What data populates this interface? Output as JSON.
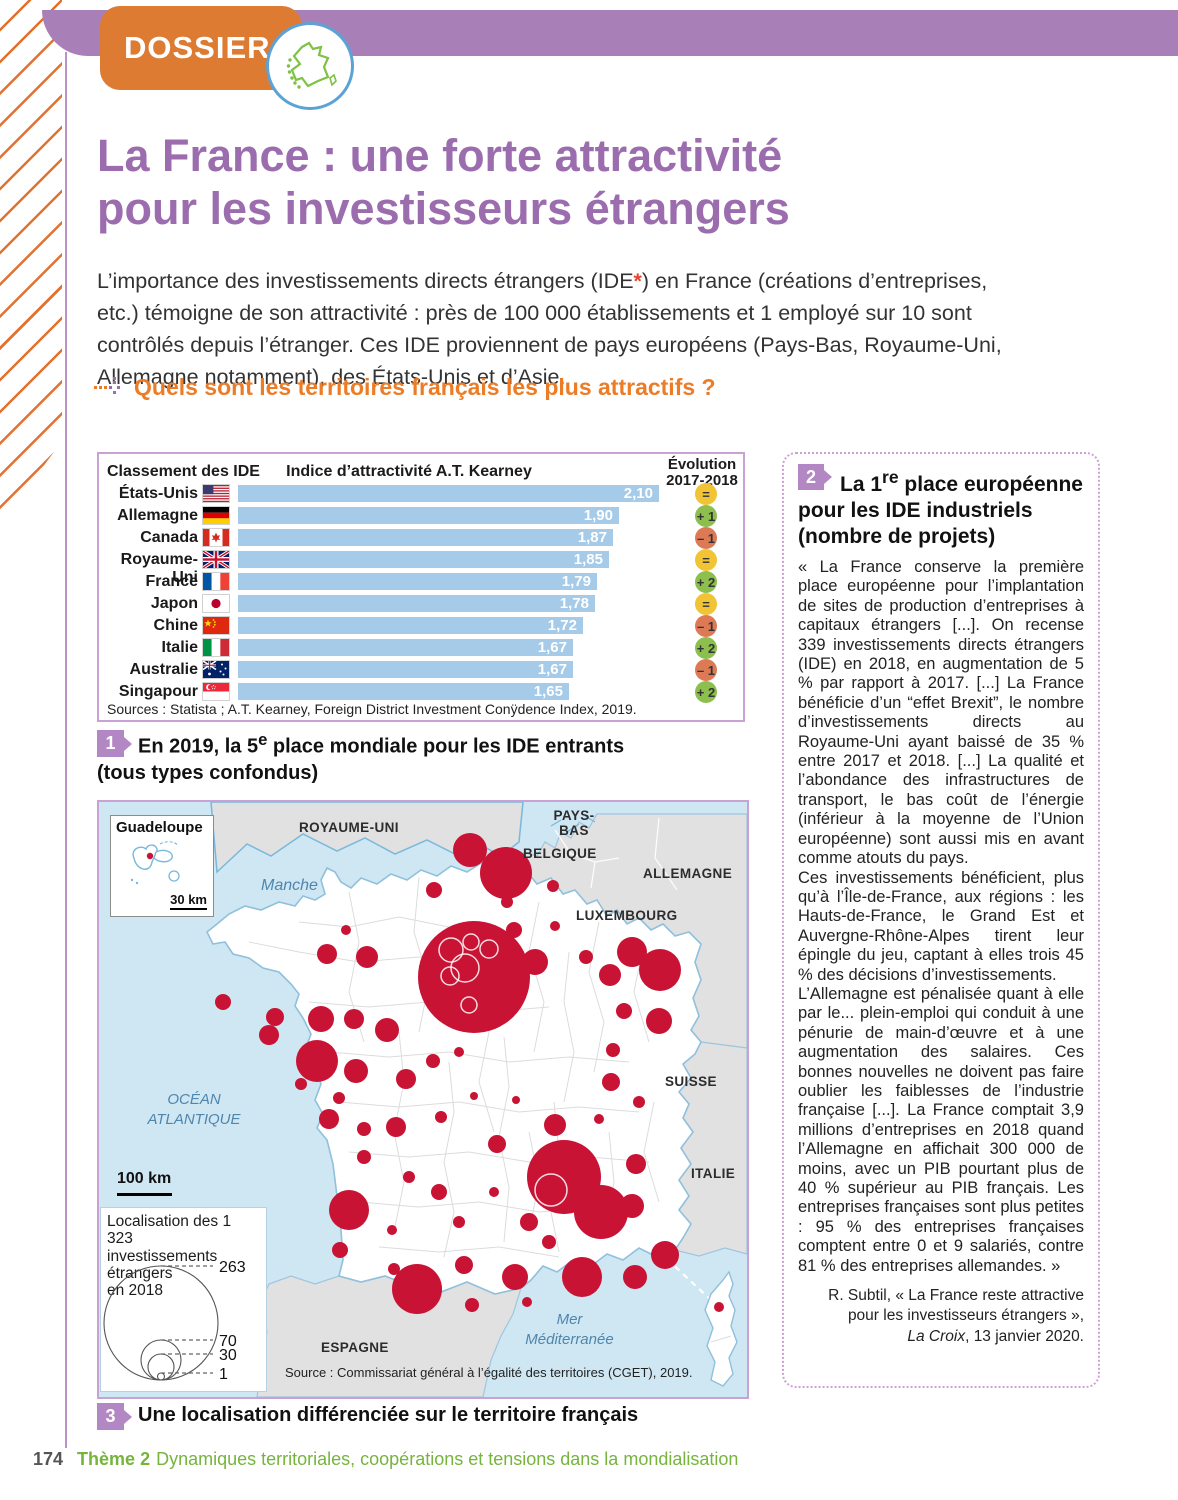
{
  "header": {
    "dossier": "DOSSIER",
    "title_line1": "La France : une forte attractivité",
    "title_line2": "pour les investisseurs étrangers"
  },
  "intro": {
    "pre": "L’importance des investissements directs étrangers (IDE",
    "star": "*",
    "post": ") en France (créations d’entreprises, etc.) témoigne de son attractivité : près de 100 000 établissements et 1 employé sur 10 sont contrôlés depuis l’étranger. Ces IDE proviennent de pays européens (Pays-Bas, Royaume-Uni, Allemagne notamment), des États-Unis et d’Asie."
  },
  "question": {
    "text": "Quels sont les territoires français les plus attractifs ?"
  },
  "chart_data": {
    "type": "bar",
    "col1_header": "Classement des IDE",
    "col2_header": "Indice d’attractivité A.T. Kearney",
    "col3_header_l1": "Évolution",
    "col3_header_l2": "2017-2018",
    "categories": [
      "États-Unis",
      "Allemagne",
      "Canada",
      "Royaume-Uni",
      "France",
      "Japon",
      "Chine",
      "Italie",
      "Australie",
      "Singapour"
    ],
    "values": [
      2.1,
      1.9,
      1.87,
      1.85,
      1.79,
      1.78,
      1.72,
      1.67,
      1.67,
      1.65
    ],
    "value_labels": [
      "2,10",
      "1,90",
      "1,87",
      "1,85",
      "1,79",
      "1,78",
      "1,72",
      "1,67",
      "1,67",
      "1,65"
    ],
    "flags": [
      "us",
      "de",
      "ca",
      "gb",
      "fr",
      "jp",
      "cn",
      "it",
      "au",
      "sg"
    ],
    "evolution": [
      {
        "label": "=",
        "dir": "eq"
      },
      {
        "label": "+ 1",
        "dir": "up"
      },
      {
        "label": "– 1",
        "dir": "down"
      },
      {
        "label": "=",
        "dir": "eq"
      },
      {
        "label": "+ 2",
        "dir": "up"
      },
      {
        "label": "=",
        "dir": "eq"
      },
      {
        "label": "– 1",
        "dir": "down"
      },
      {
        "label": "+ 2",
        "dir": "up"
      },
      {
        "label": "– 1",
        "dir": "down"
      },
      {
        "label": "+ 2",
        "dir": "up"
      }
    ],
    "xlim": [
      0,
      2.1
    ],
    "source": "Sources : Statista ; A.T. Kearney, Foreign District Investment Conÿdence Index, 2019."
  },
  "caption1": {
    "number": "1",
    "pre": "En 2019, la 5",
    "sup": "e",
    "post": " place mondiale pour les IDE entrants",
    "line2": "(tous types confondus)"
  },
  "doc2": {
    "number": "2",
    "title_pre": "La 1",
    "title_sup": "re",
    "title_post": " place européenne",
    "title_l2": "pour les IDE industriels",
    "title_l3": "(nombre de projets)",
    "paragraphs": [
      "« La France conserve la première place européenne pour l’implantation de sites de production d’entreprises à capitaux étrangers [...]. On recense 339 investissements directs étrangers (IDE) en 2018, en augmentation de 5 % par rapport à 2017. [...] La France bénéficie d’un “effet Brexit”, le nombre d’investissements directs au Royaume-Uni ayant baissé de 35 % entre 2017 et 2018. [...] La qualité et l’abondance des infrastructures de transport, le bas coût de l’énergie (inférieur à la moyenne de l’Union européenne) sont aussi mis en avant comme atouts du pays.",
      "Ces investissements bénéficient, plus qu’à l’Île-de-France, aux régions : les Hauts-de-France, le Grand Est et Auvergne-Rhône-Alpes tirent leur épingle du jeu, captant à elles trois 45 % des décisions d’investissements.",
      "L’Allemagne est pénalisée quant à elle par le... plein-emploi qui conduit à une pénurie de main-d’œuvre et à une augmentation des salaires. Ces bonnes nouvelles ne doivent pas faire oublier les faiblesses de l’industrie française [...]. La France comptait 3,9 millions d’entreprises en 2018 quand l’Allemagne en affichait 300 000 de moins, avec un PIB pourtant plus de 40 % supérieur au PIB français. Les entreprises françaises sont plus petites : 95 % des entreprises françaises comptent entre 0 et 9 salariés, contre 81 % des entreprises allemandes. »"
    ],
    "attr_l1": "R. Subtil, « La France reste attractive",
    "attr_l2": "pour les investisseurs étrangers »,",
    "attr_src": "La Croix",
    "attr_end": ", 13 janvier 2020."
  },
  "map": {
    "inset": {
      "title": "Guadeloupe",
      "scale": "30 km"
    },
    "labels": {
      "royaume_uni": "ROYAUME-UNI",
      "pays_bas_l1": "PAYS-",
      "pays_bas_l2": "BAS",
      "belgique": "BELGIQUE",
      "allemagne": "ALLEMAGNE",
      "luxembourg": "LUXEMBOURG",
      "suisse": "SUISSE",
      "italie": "ITALIE",
      "espagne": "ESPAGNE",
      "manche": "Manche",
      "ocean_l1": "OCÉAN",
      "ocean_l2": "ATLANTIQUE",
      "mer_l1": "Mer",
      "mer_l2": "Méditerranée"
    },
    "scale": "100 km",
    "legend": {
      "l1": "Localisation des 1 323",
      "l2": "investissements étrangers",
      "l3": "en 2018",
      "v263": "263",
      "v70": "70",
      "v30": "30",
      "v1": "1"
    },
    "source": "Source : Commissariat général à l’égalité des territoires (CGET), 2019.",
    "circle_color": "#c81334",
    "circles": [
      [
        371,
        48,
        17
      ],
      [
        407,
        71,
        26
      ],
      [
        335,
        88,
        8
      ],
      [
        454,
        84,
        6
      ],
      [
        408,
        100,
        6
      ],
      [
        228,
        152,
        10
      ],
      [
        268,
        155,
        11
      ],
      [
        247,
        128,
        5
      ],
      [
        375,
        175,
        56
      ],
      [
        456,
        124,
        5
      ],
      [
        415,
        128,
        8
      ],
      [
        436,
        160,
        13
      ],
      [
        487,
        155,
        7
      ],
      [
        533,
        150,
        15
      ],
      [
        561,
        168,
        21
      ],
      [
        511,
        173,
        11
      ],
      [
        525,
        209,
        8
      ],
      [
        560,
        219,
        13
      ],
      [
        514,
        248,
        7
      ],
      [
        512,
        280,
        9
      ],
      [
        540,
        300,
        6
      ],
      [
        124,
        200,
        8
      ],
      [
        176,
        215,
        9
      ],
      [
        222,
        217,
        13
      ],
      [
        255,
        217,
        10
      ],
      [
        288,
        228,
        12
      ],
      [
        170,
        233,
        10
      ],
      [
        218,
        259,
        21
      ],
      [
        257,
        269,
        12
      ],
      [
        307,
        277,
        10
      ],
      [
        334,
        259,
        7
      ],
      [
        360,
        250,
        5
      ],
      [
        202,
        282,
        6
      ],
      [
        240,
        296,
        6
      ],
      [
        230,
        317,
        10
      ],
      [
        265,
        327,
        7
      ],
      [
        297,
        325,
        10
      ],
      [
        342,
        315,
        6
      ],
      [
        375,
        294,
        4
      ],
      [
        417,
        298,
        4
      ],
      [
        398,
        342,
        9
      ],
      [
        456,
        323,
        11
      ],
      [
        500,
        317,
        5
      ],
      [
        537,
        362,
        10
      ],
      [
        265,
        355,
        7
      ],
      [
        310,
        375,
        6
      ],
      [
        340,
        390,
        8
      ],
      [
        395,
        390,
        5
      ],
      [
        360,
        420,
        6
      ],
      [
        430,
        420,
        9
      ],
      [
        450,
        440,
        7
      ],
      [
        465,
        375,
        37
      ],
      [
        502,
        410,
        27
      ],
      [
        533,
        404,
        12
      ],
      [
        250,
        408,
        20
      ],
      [
        293,
        428,
        5
      ],
      [
        241,
        448,
        8
      ],
      [
        295,
        467,
        6
      ],
      [
        318,
        487,
        25
      ],
      [
        365,
        463,
        9
      ],
      [
        416,
        475,
        13
      ],
      [
        483,
        475,
        20
      ],
      [
        536,
        475,
        12
      ],
      [
        566,
        453,
        14
      ],
      [
        373,
        503,
        7
      ],
      [
        428,
        500,
        5
      ],
      [
        620,
        505,
        5
      ]
    ],
    "rings": [
      [
        352,
        148,
        12
      ],
      [
        372,
        140,
        8
      ],
      [
        390,
        147,
        9
      ],
      [
        366,
        166,
        14
      ],
      [
        351,
        174,
        9
      ],
      [
        370,
        203,
        8
      ],
      [
        452,
        388,
        16
      ]
    ]
  },
  "caption3": {
    "number": "3",
    "text": "Une localisation différenciée sur le territoire français"
  },
  "footer": {
    "page": "174",
    "theme": "Thème 2",
    "text": "Dynamiques territoriales, coopérations et tensions dans la mondialisation"
  },
  "colors": {
    "accent_purple": "#9c6dae",
    "band_purple": "#a97fb7",
    "tab_orange": "#dd7b33",
    "question_orange": "#ec7c26",
    "bar_blue": "#a5cbe8",
    "circle_red": "#c81334",
    "footer_green": "#76b43e",
    "box_border": "#c9a2d3"
  }
}
